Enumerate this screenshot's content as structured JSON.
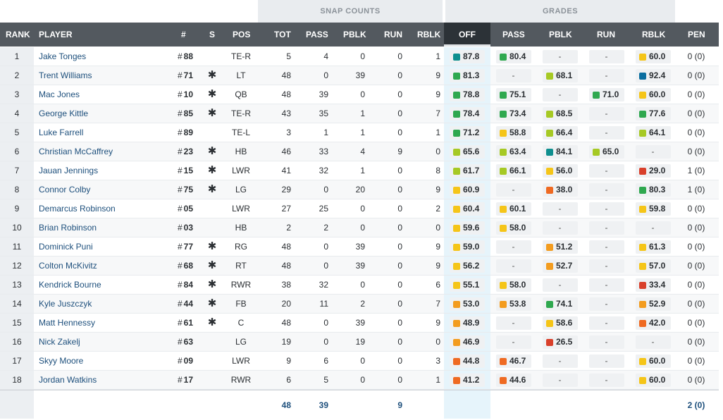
{
  "groups": {
    "snap_counts": "SNAP COUNTS",
    "grades": "GRADES"
  },
  "columns": {
    "rank": "RANK",
    "player": "PLAYER",
    "number": "#",
    "starter": "S",
    "pos": "POS",
    "tot": "TOT",
    "pass": "PASS",
    "pblk": "PBLK",
    "run": "RUN",
    "rblk": "RBLK",
    "g_off": "OFF",
    "g_pass": "PASS",
    "g_pblk": "PBLK",
    "g_run": "RUN",
    "g_rblk": "RBLK",
    "pen": "PEN"
  },
  "grade_colors": {
    "teal": "#0f8f8f",
    "green": "#2fa84f",
    "lime": "#a6c924",
    "yellow": "#f5c518",
    "orange": "#f39c1f",
    "deep-orange": "#ef6a22",
    "red": "#d9402b",
    "blue": "#0a6ea0"
  },
  "players": [
    {
      "rank": "1",
      "name": "Jake Tonges",
      "hash": "#",
      "num": "88",
      "s": "",
      "pos": "TE-R",
      "tot": "5",
      "pass": "4",
      "pblk": "0",
      "run": "0",
      "rblk": "1",
      "g_off": {
        "v": "87.8",
        "c": "teal"
      },
      "g_pass": {
        "v": "80.4",
        "c": "green"
      },
      "g_pblk": {
        "v": "-",
        "c": ""
      },
      "g_run": {
        "v": "-",
        "c": ""
      },
      "g_rblk": {
        "v": "60.0",
        "c": "yellow"
      },
      "pen": "0 (0)"
    },
    {
      "rank": "2",
      "name": "Trent Williams",
      "hash": "#",
      "num": "71",
      "s": "✱",
      "pos": "LT",
      "tot": "48",
      "pass": "0",
      "pblk": "39",
      "run": "0",
      "rblk": "9",
      "g_off": {
        "v": "81.3",
        "c": "green"
      },
      "g_pass": {
        "v": "-",
        "c": ""
      },
      "g_pblk": {
        "v": "68.1",
        "c": "lime"
      },
      "g_run": {
        "v": "-",
        "c": ""
      },
      "g_rblk": {
        "v": "92.4",
        "c": "blue"
      },
      "pen": "0 (0)"
    },
    {
      "rank": "3",
      "name": "Mac Jones",
      "hash": "#",
      "num": "10",
      "s": "✱",
      "pos": "QB",
      "tot": "48",
      "pass": "39",
      "pblk": "0",
      "run": "0",
      "rblk": "9",
      "g_off": {
        "v": "78.8",
        "c": "green"
      },
      "g_pass": {
        "v": "75.1",
        "c": "green"
      },
      "g_pblk": {
        "v": "-",
        "c": ""
      },
      "g_run": {
        "v": "71.0",
        "c": "green"
      },
      "g_rblk": {
        "v": "60.0",
        "c": "yellow"
      },
      "pen": "0 (0)"
    },
    {
      "rank": "4",
      "name": "George Kittle",
      "hash": "#",
      "num": "85",
      "s": "✱",
      "pos": "TE-R",
      "tot": "43",
      "pass": "35",
      "pblk": "1",
      "run": "0",
      "rblk": "7",
      "g_off": {
        "v": "78.4",
        "c": "green"
      },
      "g_pass": {
        "v": "73.4",
        "c": "green"
      },
      "g_pblk": {
        "v": "68.5",
        "c": "lime"
      },
      "g_run": {
        "v": "-",
        "c": ""
      },
      "g_rblk": {
        "v": "77.6",
        "c": "green"
      },
      "pen": "0 (0)"
    },
    {
      "rank": "5",
      "name": "Luke Farrell",
      "hash": "#",
      "num": "89",
      "s": "",
      "pos": "TE-L",
      "tot": "3",
      "pass": "1",
      "pblk": "1",
      "run": "0",
      "rblk": "1",
      "g_off": {
        "v": "71.2",
        "c": "green"
      },
      "g_pass": {
        "v": "58.8",
        "c": "yellow"
      },
      "g_pblk": {
        "v": "66.4",
        "c": "lime"
      },
      "g_run": {
        "v": "-",
        "c": ""
      },
      "g_rblk": {
        "v": "64.1",
        "c": "lime"
      },
      "pen": "0 (0)"
    },
    {
      "rank": "6",
      "name": "Christian McCaffrey",
      "hash": "#",
      "num": "23",
      "s": "✱",
      "pos": "HB",
      "tot": "46",
      "pass": "33",
      "pblk": "4",
      "run": "9",
      "rblk": "0",
      "g_off": {
        "v": "65.6",
        "c": "lime"
      },
      "g_pass": {
        "v": "63.4",
        "c": "lime"
      },
      "g_pblk": {
        "v": "84.1",
        "c": "teal"
      },
      "g_run": {
        "v": "65.0",
        "c": "lime"
      },
      "g_rblk": {
        "v": "-",
        "c": ""
      },
      "pen": "0 (0)"
    },
    {
      "rank": "7",
      "name": "Jauan Jennings",
      "hash": "#",
      "num": "15",
      "s": "✱",
      "pos": "LWR",
      "tot": "41",
      "pass": "32",
      "pblk": "1",
      "run": "0",
      "rblk": "8",
      "g_off": {
        "v": "61.7",
        "c": "lime"
      },
      "g_pass": {
        "v": "66.1",
        "c": "lime"
      },
      "g_pblk": {
        "v": "56.0",
        "c": "yellow"
      },
      "g_run": {
        "v": "-",
        "c": ""
      },
      "g_rblk": {
        "v": "29.0",
        "c": "red"
      },
      "pen": "1 (0)"
    },
    {
      "rank": "8",
      "name": "Connor Colby",
      "hash": "#",
      "num": "75",
      "s": "✱",
      "pos": "LG",
      "tot": "29",
      "pass": "0",
      "pblk": "20",
      "run": "0",
      "rblk": "9",
      "g_off": {
        "v": "60.9",
        "c": "yellow"
      },
      "g_pass": {
        "v": "-",
        "c": ""
      },
      "g_pblk": {
        "v": "38.0",
        "c": "deep-orange"
      },
      "g_run": {
        "v": "-",
        "c": ""
      },
      "g_rblk": {
        "v": "80.3",
        "c": "green"
      },
      "pen": "1 (0)"
    },
    {
      "rank": "9",
      "name": "Demarcus Robinson",
      "hash": "#",
      "num": "05",
      "s": "",
      "pos": "LWR",
      "tot": "27",
      "pass": "25",
      "pblk": "0",
      "run": "0",
      "rblk": "2",
      "g_off": {
        "v": "60.4",
        "c": "yellow"
      },
      "g_pass": {
        "v": "60.1",
        "c": "yellow"
      },
      "g_pblk": {
        "v": "-",
        "c": ""
      },
      "g_run": {
        "v": "-",
        "c": ""
      },
      "g_rblk": {
        "v": "59.8",
        "c": "yellow"
      },
      "pen": "0 (0)"
    },
    {
      "rank": "10",
      "name": "Brian Robinson",
      "hash": "#",
      "num": "03",
      "s": "",
      "pos": "HB",
      "tot": "2",
      "pass": "2",
      "pblk": "0",
      "run": "0",
      "rblk": "0",
      "g_off": {
        "v": "59.6",
        "c": "yellow"
      },
      "g_pass": {
        "v": "58.0",
        "c": "yellow"
      },
      "g_pblk": {
        "v": "-",
        "c": ""
      },
      "g_run": {
        "v": "-",
        "c": ""
      },
      "g_rblk": {
        "v": "-",
        "c": ""
      },
      "pen": "0 (0)"
    },
    {
      "rank": "11",
      "name": "Dominick Puni",
      "hash": "#",
      "num": "77",
      "s": "✱",
      "pos": "RG",
      "tot": "48",
      "pass": "0",
      "pblk": "39",
      "run": "0",
      "rblk": "9",
      "g_off": {
        "v": "59.0",
        "c": "yellow"
      },
      "g_pass": {
        "v": "-",
        "c": ""
      },
      "g_pblk": {
        "v": "51.2",
        "c": "orange"
      },
      "g_run": {
        "v": "-",
        "c": ""
      },
      "g_rblk": {
        "v": "61.3",
        "c": "yellow"
      },
      "pen": "0 (0)"
    },
    {
      "rank": "12",
      "name": "Colton McKivitz",
      "hash": "#",
      "num": "68",
      "s": "✱",
      "pos": "RT",
      "tot": "48",
      "pass": "0",
      "pblk": "39",
      "run": "0",
      "rblk": "9",
      "g_off": {
        "v": "56.2",
        "c": "yellow"
      },
      "g_pass": {
        "v": "-",
        "c": ""
      },
      "g_pblk": {
        "v": "52.7",
        "c": "orange"
      },
      "g_run": {
        "v": "-",
        "c": ""
      },
      "g_rblk": {
        "v": "57.0",
        "c": "yellow"
      },
      "pen": "0 (0)"
    },
    {
      "rank": "13",
      "name": "Kendrick Bourne",
      "hash": "#",
      "num": "84",
      "s": "✱",
      "pos": "RWR",
      "tot": "38",
      "pass": "32",
      "pblk": "0",
      "run": "0",
      "rblk": "6",
      "g_off": {
        "v": "55.1",
        "c": "yellow"
      },
      "g_pass": {
        "v": "58.0",
        "c": "yellow"
      },
      "g_pblk": {
        "v": "-",
        "c": ""
      },
      "g_run": {
        "v": "-",
        "c": ""
      },
      "g_rblk": {
        "v": "33.4",
        "c": "red"
      },
      "pen": "0 (0)"
    },
    {
      "rank": "14",
      "name": "Kyle Juszczyk",
      "hash": "#",
      "num": "44",
      "s": "✱",
      "pos": "FB",
      "tot": "20",
      "pass": "11",
      "pblk": "2",
      "run": "0",
      "rblk": "7",
      "g_off": {
        "v": "53.0",
        "c": "orange"
      },
      "g_pass": {
        "v": "53.8",
        "c": "orange"
      },
      "g_pblk": {
        "v": "74.1",
        "c": "green"
      },
      "g_run": {
        "v": "-",
        "c": ""
      },
      "g_rblk": {
        "v": "52.9",
        "c": "orange"
      },
      "pen": "0 (0)"
    },
    {
      "rank": "15",
      "name": "Matt Hennessy",
      "hash": "#",
      "num": "61",
      "s": "✱",
      "pos": "C",
      "tot": "48",
      "pass": "0",
      "pblk": "39",
      "run": "0",
      "rblk": "9",
      "g_off": {
        "v": "48.9",
        "c": "orange"
      },
      "g_pass": {
        "v": "-",
        "c": ""
      },
      "g_pblk": {
        "v": "58.6",
        "c": "yellow"
      },
      "g_run": {
        "v": "-",
        "c": ""
      },
      "g_rblk": {
        "v": "42.0",
        "c": "deep-orange"
      },
      "pen": "0 (0)"
    },
    {
      "rank": "16",
      "name": "Nick Zakelj",
      "hash": "#",
      "num": "63",
      "s": "",
      "pos": "LG",
      "tot": "19",
      "pass": "0",
      "pblk": "19",
      "run": "0",
      "rblk": "0",
      "g_off": {
        "v": "46.9",
        "c": "orange"
      },
      "g_pass": {
        "v": "-",
        "c": ""
      },
      "g_pblk": {
        "v": "26.5",
        "c": "red"
      },
      "g_run": {
        "v": "-",
        "c": ""
      },
      "g_rblk": {
        "v": "-",
        "c": ""
      },
      "pen": "0 (0)"
    },
    {
      "rank": "17",
      "name": "Skyy Moore",
      "hash": "#",
      "num": "09",
      "s": "",
      "pos": "LWR",
      "tot": "9",
      "pass": "6",
      "pblk": "0",
      "run": "0",
      "rblk": "3",
      "g_off": {
        "v": "44.8",
        "c": "deep-orange"
      },
      "g_pass": {
        "v": "46.7",
        "c": "deep-orange"
      },
      "g_pblk": {
        "v": "-",
        "c": ""
      },
      "g_run": {
        "v": "-",
        "c": ""
      },
      "g_rblk": {
        "v": "60.0",
        "c": "yellow"
      },
      "pen": "0 (0)"
    },
    {
      "rank": "18",
      "name": "Jordan Watkins",
      "hash": "#",
      "num": "17",
      "s": "",
      "pos": "RWR",
      "tot": "6",
      "pass": "5",
      "pblk": "0",
      "run": "0",
      "rblk": "1",
      "g_off": {
        "v": "41.2",
        "c": "deep-orange"
      },
      "g_pass": {
        "v": "44.6",
        "c": "deep-orange"
      },
      "g_pblk": {
        "v": "-",
        "c": ""
      },
      "g_run": {
        "v": "-",
        "c": ""
      },
      "g_rblk": {
        "v": "60.0",
        "c": "yellow"
      },
      "pen": "0 (0)"
    }
  ],
  "totals": {
    "tot": "48",
    "pass": "39",
    "run": "9",
    "pen": "2 (0)"
  }
}
